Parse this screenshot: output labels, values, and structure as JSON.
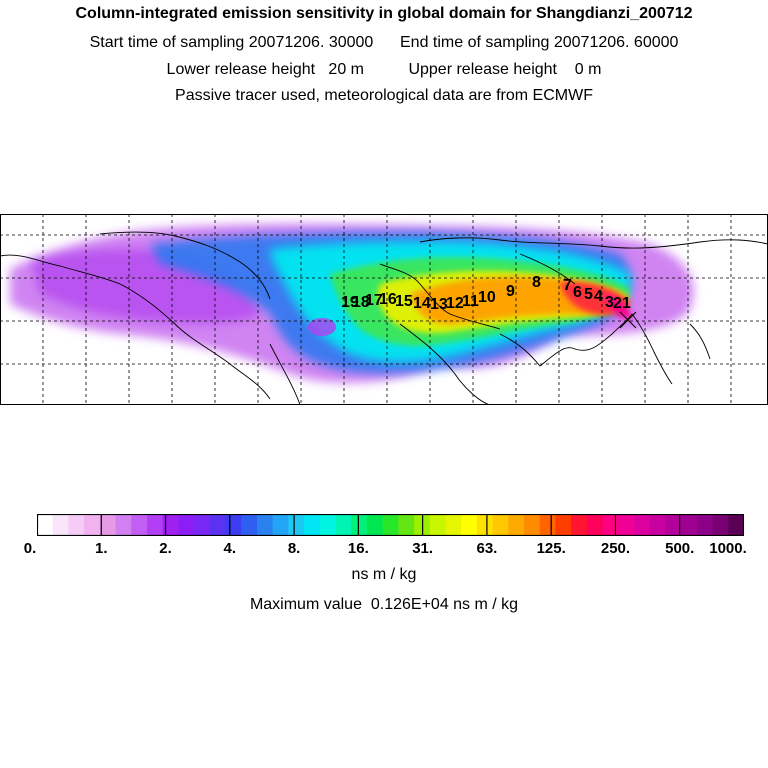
{
  "header": {
    "title": "Column-integrated emission sensitivity in global domain for Shangdianzi_200712",
    "sampling_line": "Start time of sampling 20071206. 30000      End time of sampling 20071206. 60000",
    "release_line": "Lower release height   20 m          Upper release height    0 m",
    "tracer_line": "Passive tracer used, meteorological data are from ECMWF"
  },
  "map": {
    "markers": [
      "19",
      "18",
      "17",
      "16",
      "15",
      "14",
      "13",
      "12",
      "11",
      "10",
      "9",
      "8",
      "7",
      "6",
      "5",
      "4",
      "3",
      "2",
      "1"
    ]
  },
  "colorbar": {
    "tick_labels": [
      "0.",
      "1.",
      "2.",
      "4.",
      "8.",
      "16.",
      "31.",
      "63.",
      "125.",
      "250.",
      "500.",
      "1000."
    ],
    "colors": [
      "#ffffff",
      "#fae6fa",
      "#f5ccf5",
      "#f0b3f0",
      "#e69ae6",
      "#d27ff2",
      "#c35ef5",
      "#b23ff5",
      "#a020f0",
      "#8c1ef5",
      "#7a28f5",
      "#5a32f0",
      "#3c3cf0",
      "#2f5ff0",
      "#2a82f0",
      "#23a5f5",
      "#1ec8f5",
      "#00e6f5",
      "#00f5e1",
      "#00f5b4",
      "#00f078",
      "#00e650",
      "#28e628",
      "#64e614",
      "#9bf000",
      "#c8f500",
      "#e6f500",
      "#ffff00",
      "#ffe100",
      "#ffc800",
      "#ffaa00",
      "#ff8c00",
      "#ff6400",
      "#ff3c00",
      "#ff1432",
      "#ff005a",
      "#ff0082",
      "#f00096",
      "#dc00a0",
      "#c800a0",
      "#b4009b",
      "#a00091",
      "#8c0087",
      "#780073",
      "#5a0055"
    ],
    "unit": "ns m / kg"
  },
  "max_value": "Maximum value  0.126E+04 ns m / kg"
}
